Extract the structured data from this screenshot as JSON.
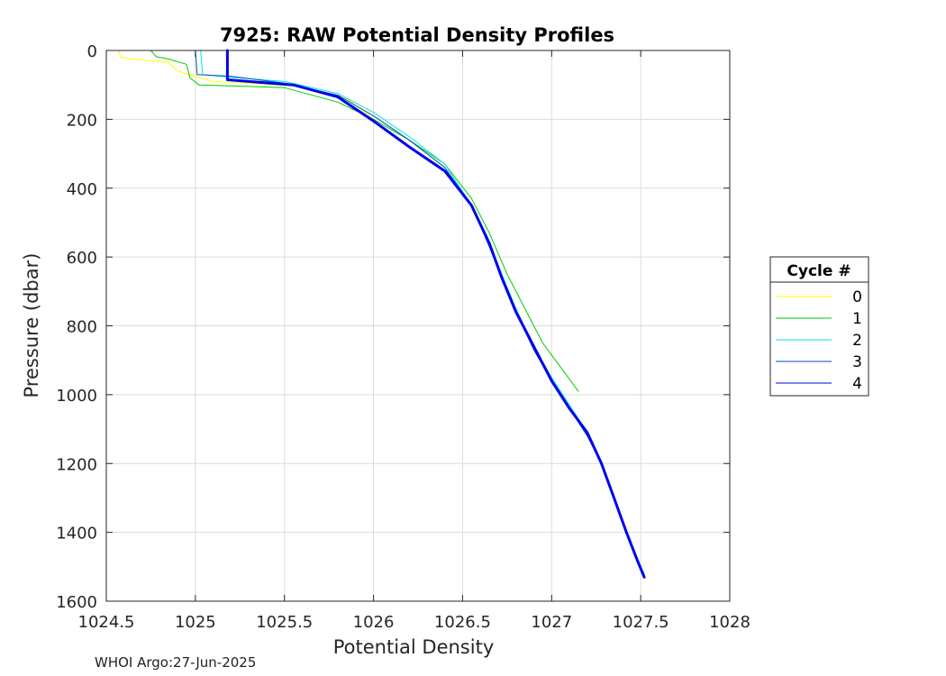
{
  "chart_data": {
    "type": "line",
    "title": "7925: RAW Potential Density Profiles",
    "xlabel": "Potential Density",
    "ylabel": "Pressure (dbar)",
    "xlim": [
      1024.5,
      1028
    ],
    "ylim": [
      0,
      1600
    ],
    "y_reversed": true,
    "grid": true,
    "x_ticks": [
      1024.5,
      1025,
      1025.5,
      1026,
      1026.5,
      1027,
      1027.5,
      1028
    ],
    "x_tick_labels": [
      "1024.5",
      "1025",
      "1025.5",
      "1026",
      "1026.5",
      "1027",
      "1027.5",
      "1028"
    ],
    "y_ticks": [
      0,
      200,
      400,
      600,
      800,
      1000,
      1200,
      1400,
      1600
    ],
    "y_tick_labels": [
      "0",
      "200",
      "400",
      "600",
      "800",
      "1000",
      "1200",
      "1400",
      "1600"
    ],
    "legend": {
      "title": "Cycle #",
      "placement": "outside-right"
    },
    "series": [
      {
        "name": "0",
        "color": "#ffff00",
        "width": 1,
        "points": [
          [
            1024.57,
            0
          ],
          [
            1024.58,
            20
          ],
          [
            1024.65,
            25
          ],
          [
            1024.85,
            35
          ],
          [
            1024.9,
            60
          ],
          [
            1025.0,
            75
          ],
          [
            1025.1,
            90
          ],
          [
            1025.3,
            95
          ],
          [
            1025.6,
            105
          ],
          [
            1025.85,
            140
          ],
          [
            1026.0,
            200
          ]
        ]
      },
      {
        "name": "1",
        "color": "#00cc00",
        "width": 1,
        "points": [
          [
            1024.75,
            0
          ],
          [
            1024.78,
            18
          ],
          [
            1024.85,
            25
          ],
          [
            1024.95,
            40
          ],
          [
            1024.97,
            80
          ],
          [
            1025.02,
            100
          ],
          [
            1025.2,
            103
          ],
          [
            1025.5,
            108
          ],
          [
            1025.8,
            150
          ],
          [
            1026.0,
            200
          ],
          [
            1026.2,
            260
          ],
          [
            1026.4,
            330
          ],
          [
            1026.55,
            430
          ],
          [
            1026.65,
            530
          ],
          [
            1026.75,
            650
          ],
          [
            1026.85,
            750
          ],
          [
            1026.95,
            850
          ],
          [
            1027.05,
            920
          ],
          [
            1027.15,
            990
          ]
        ]
      },
      {
        "name": "2",
        "color": "#00e6e6",
        "width": 1,
        "points": [
          [
            1025.03,
            0
          ],
          [
            1025.04,
            70
          ],
          [
            1025.2,
            78
          ],
          [
            1025.5,
            90
          ],
          [
            1025.8,
            125
          ],
          [
            1026.0,
            180
          ],
          [
            1026.2,
            250
          ],
          [
            1026.4,
            330
          ],
          [
            1026.55,
            450
          ],
          [
            1026.65,
            560
          ],
          [
            1026.72,
            650
          ],
          [
            1026.8,
            750
          ],
          [
            1026.9,
            860
          ],
          [
            1027.0,
            950
          ],
          [
            1027.1,
            1030
          ],
          [
            1027.2,
            1110
          ],
          [
            1027.28,
            1200
          ],
          [
            1027.35,
            1300
          ],
          [
            1027.42,
            1400
          ],
          [
            1027.48,
            1480
          ],
          [
            1027.52,
            1520
          ]
        ]
      },
      {
        "name": "3",
        "color": "#0050b4",
        "width": 1,
        "points": [
          [
            1025.0,
            0
          ],
          [
            1025.01,
            70
          ],
          [
            1025.2,
            75
          ],
          [
            1025.5,
            95
          ],
          [
            1025.8,
            130
          ],
          [
            1026.0,
            190
          ],
          [
            1026.2,
            260
          ],
          [
            1026.4,
            340
          ],
          [
            1026.55,
            450
          ],
          [
            1026.65,
            570
          ],
          [
            1026.72,
            660
          ],
          [
            1026.8,
            760
          ],
          [
            1026.9,
            870
          ],
          [
            1027.0,
            960
          ],
          [
            1027.1,
            1040
          ],
          [
            1027.2,
            1120
          ],
          [
            1027.28,
            1200
          ],
          [
            1027.35,
            1300
          ],
          [
            1027.42,
            1400
          ],
          [
            1027.48,
            1480
          ],
          [
            1027.52,
            1525
          ]
        ]
      },
      {
        "name": "4",
        "color": "#0000ee",
        "width": 3,
        "points": [
          [
            1025.18,
            0
          ],
          [
            1025.18,
            85
          ],
          [
            1025.3,
            90
          ],
          [
            1025.55,
            100
          ],
          [
            1025.8,
            135
          ],
          [
            1026.0,
            205
          ],
          [
            1026.2,
            280
          ],
          [
            1026.4,
            350
          ],
          [
            1026.55,
            450
          ],
          [
            1026.65,
            560
          ],
          [
            1026.72,
            660
          ],
          [
            1026.8,
            760
          ],
          [
            1026.9,
            860
          ],
          [
            1027.0,
            960
          ],
          [
            1027.1,
            1040
          ],
          [
            1027.2,
            1110
          ],
          [
            1027.28,
            1200
          ],
          [
            1027.35,
            1300
          ],
          [
            1027.42,
            1400
          ],
          [
            1027.48,
            1480
          ],
          [
            1027.52,
            1530
          ]
        ]
      }
    ]
  },
  "footer": {
    "text": "WHOI Argo:27-Jun-2025"
  }
}
